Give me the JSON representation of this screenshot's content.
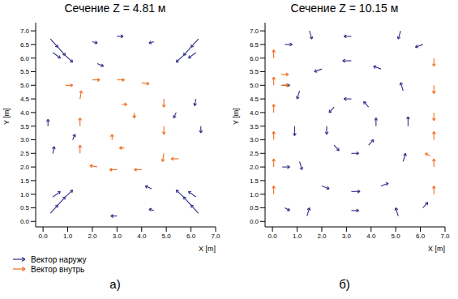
{
  "chart_data": [
    {
      "type": "vector",
      "title": "Сечение Z = 4.81 м",
      "panel_label": "а)",
      "x_label": "X [m]",
      "y_label": "Y [m]",
      "xlim": [
        -0.3,
        7.0
      ],
      "ylim": [
        -0.2,
        7.3
      ],
      "xticks": [
        {
          "value": 0,
          "label": "0.0"
        },
        {
          "value": 1,
          "label": "1.0"
        },
        {
          "value": 2,
          "label": "2.0"
        },
        {
          "value": 3,
          "label": "3.0"
        },
        {
          "value": 4,
          "label": "4.0"
        },
        {
          "value": 5,
          "label": "5.0"
        },
        {
          "value": 6,
          "label": "6.0"
        },
        {
          "value": 7,
          "label": "7.0"
        }
      ],
      "yticks": [
        {
          "value": 0,
          "label": "0.0"
        },
        {
          "value": 0.5,
          "label": "0.5"
        },
        {
          "value": 1,
          "label": "1.0"
        },
        {
          "value": 1.5,
          "label": "1.5"
        },
        {
          "value": 2,
          "label": "2.0"
        },
        {
          "value": 2.5,
          "label": "2.5"
        },
        {
          "value": 3,
          "label": "3.0"
        },
        {
          "value": 3.5,
          "label": "3.5"
        },
        {
          "value": 4,
          "label": "4.0"
        },
        {
          "value": 4.5,
          "label": "4.5"
        },
        {
          "value": 5,
          "label": "5.0"
        },
        {
          "value": 5.5,
          "label": "5.5"
        },
        {
          "value": 6,
          "label": "6.0"
        },
        {
          "value": 6.5,
          "label": "6.5"
        },
        {
          "value": 7,
          "label": "7.0"
        }
      ],
      "grid": false,
      "legend": "bottom",
      "series": [
        {
          "name": "Вектор наружу",
          "color": "#2e2e8a",
          "marker": "arrow",
          "values": [
            {
              "x": 0.3,
              "y": 6.7,
              "u": 0.3,
              "v": -0.3
            },
            {
              "x": 0.6,
              "y": 6.4,
              "u": 0.3,
              "v": -0.3
            },
            {
              "x": 0.9,
              "y": 6.1,
              "u": 0.3,
              "v": -0.25
            },
            {
              "x": 0.4,
              "y": 6.2,
              "u": 0.3,
              "v": -0.2
            },
            {
              "x": 6.3,
              "y": 6.7,
              "u": -0.3,
              "v": -0.3
            },
            {
              "x": 6.0,
              "y": 6.4,
              "u": -0.3,
              "v": -0.3
            },
            {
              "x": 5.7,
              "y": 6.1,
              "u": -0.3,
              "v": -0.25
            },
            {
              "x": 6.2,
              "y": 6.2,
              "u": -0.3,
              "v": -0.2
            },
            {
              "x": 0.3,
              "y": 0.3,
              "u": 0.3,
              "v": 0.3
            },
            {
              "x": 0.6,
              "y": 0.6,
              "u": 0.3,
              "v": 0.3
            },
            {
              "x": 0.9,
              "y": 0.9,
              "u": 0.3,
              "v": 0.25
            },
            {
              "x": 0.4,
              "y": 0.9,
              "u": 0.3,
              "v": 0.2
            },
            {
              "x": 6.3,
              "y": 0.3,
              "u": -0.3,
              "v": 0.3
            },
            {
              "x": 6.0,
              "y": 0.6,
              "u": -0.3,
              "v": 0.3
            },
            {
              "x": 5.7,
              "y": 0.9,
              "u": -0.3,
              "v": 0.25
            },
            {
              "x": 6.2,
              "y": 0.9,
              "u": -0.3,
              "v": 0.2
            },
            {
              "x": 3.0,
              "y": 6.8,
              "u": 0.25,
              "v": 0
            },
            {
              "x": 2.0,
              "y": 6.6,
              "u": 0.2,
              "v": -0.05
            },
            {
              "x": 4.5,
              "y": 6.6,
              "u": -0.2,
              "v": -0.05
            },
            {
              "x": 0.2,
              "y": 3.5,
              "u": 0,
              "v": 0.25
            },
            {
              "x": 0.4,
              "y": 2.5,
              "u": 0.05,
              "v": 0.25
            },
            {
              "x": 6.4,
              "y": 3.5,
              "u": 0,
              "v": -0.25
            },
            {
              "x": 6.2,
              "y": 4.5,
              "u": -0.05,
              "v": -0.25
            },
            {
              "x": 3.0,
              "y": 0.2,
              "u": -0.25,
              "v": 0
            },
            {
              "x": 4.5,
              "y": 0.4,
              "u": -0.2,
              "v": 0.05
            },
            {
              "x": 1.2,
              "y": 3.0,
              "u": 0.1,
              "v": 0.2
            },
            {
              "x": 5.4,
              "y": 4.0,
              "u": -0.1,
              "v": -0.2
            },
            {
              "x": 2.2,
              "y": 5.8,
              "u": 0.25,
              "v": -0.1
            },
            {
              "x": 4.4,
              "y": 1.2,
              "u": -0.25,
              "v": 0.1
            }
          ]
        },
        {
          "name": "Вектор внутрь",
          "color": "#f06a1e",
          "marker": "arrow",
          "values": [
            {
              "x": 1.5,
              "y": 2.5,
              "u": 0,
              "v": 0.3
            },
            {
              "x": 1.5,
              "y": 3.5,
              "u": 0,
              "v": 0.3
            },
            {
              "x": 1.5,
              "y": 4.5,
              "u": 0.05,
              "v": 0.3
            },
            {
              "x": 2.0,
              "y": 5.2,
              "u": 0.3,
              "v": 0
            },
            {
              "x": 3.0,
              "y": 5.2,
              "u": 0.3,
              "v": 0
            },
            {
              "x": 4.0,
              "y": 5.1,
              "u": 0.3,
              "v": -0.05
            },
            {
              "x": 4.9,
              "y": 4.5,
              "u": 0,
              "v": -0.3
            },
            {
              "x": 4.9,
              "y": 3.5,
              "u": 0,
              "v": -0.3
            },
            {
              "x": 4.9,
              "y": 2.5,
              "u": -0.05,
              "v": -0.3
            },
            {
              "x": 4.0,
              "y": 1.9,
              "u": -0.3,
              "v": 0
            },
            {
              "x": 3.0,
              "y": 1.9,
              "u": -0.3,
              "v": 0
            },
            {
              "x": 2.2,
              "y": 2.0,
              "u": -0.3,
              "v": 0.05
            },
            {
              "x": 0.9,
              "y": 5.0,
              "u": 0.3,
              "v": 0
            },
            {
              "x": 5.5,
              "y": 2.3,
              "u": -0.3,
              "v": 0
            },
            {
              "x": 2.8,
              "y": 3.0,
              "u": 0,
              "v": 0.2
            },
            {
              "x": 3.7,
              "y": 4.0,
              "u": 0,
              "v": -0.2
            },
            {
              "x": 3.2,
              "y": 4.3,
              "u": 0.2,
              "v": 0
            },
            {
              "x": 3.3,
              "y": 2.7,
              "u": -0.2,
              "v": 0
            }
          ]
        }
      ]
    },
    {
      "type": "vector",
      "title": "Сечение Z = 10.15 м",
      "panel_label": "б)",
      "x_label": "X [m]",
      "y_label": "Y [m]",
      "xlim": [
        -0.3,
        7.0
      ],
      "ylim": [
        -0.2,
        7.3
      ],
      "xticks": [
        {
          "value": 0,
          "label": "0.0"
        },
        {
          "value": 1,
          "label": "1.0"
        },
        {
          "value": 2,
          "label": "2.0"
        },
        {
          "value": 3,
          "label": "3.0"
        },
        {
          "value": 4,
          "label": "4.0"
        },
        {
          "value": 5,
          "label": "5.0"
        },
        {
          "value": 6,
          "label": "6.0"
        },
        {
          "value": 7,
          "label": "7.0"
        }
      ],
      "yticks": [
        {
          "value": 0,
          "label": "0.0"
        },
        {
          "value": 0.5,
          "label": "0.5"
        },
        {
          "value": 1,
          "label": "1.0"
        },
        {
          "value": 1.5,
          "label": "1.5"
        },
        {
          "value": 2,
          "label": "2.0"
        },
        {
          "value": 2.5,
          "label": "2.5"
        },
        {
          "value": 3,
          "label": "3.0"
        },
        {
          "value": 3.5,
          "label": "3.5"
        },
        {
          "value": 4,
          "label": "4.0"
        },
        {
          "value": 4.5,
          "label": "4.5"
        },
        {
          "value": 5,
          "label": "5.0"
        },
        {
          "value": 5.5,
          "label": "5.5"
        },
        {
          "value": 6,
          "label": "6.0"
        },
        {
          "value": 6.5,
          "label": "6.5"
        },
        {
          "value": 7,
          "label": "7.0"
        }
      ],
      "grid": false,
      "series": [
        {
          "name": "Вектор наружу",
          "color": "#2e2e8a",
          "marker": "arrow",
          "values": [
            {
              "x": 1.5,
              "y": 7.0,
              "u": 0.1,
              "v": -0.3
            },
            {
              "x": 5.2,
              "y": 7.0,
              "u": -0.1,
              "v": -0.3
            },
            {
              "x": 1.4,
              "y": 0.2,
              "u": 0.1,
              "v": 0.3
            },
            {
              "x": 5.1,
              "y": 0.2,
              "u": -0.1,
              "v": 0.3
            },
            {
              "x": 3.2,
              "y": 4.5,
              "u": -0.3,
              "v": 0
            },
            {
              "x": 2.2,
              "y": 3.5,
              "u": 0,
              "v": -0.3
            },
            {
              "x": 3.2,
              "y": 2.5,
              "u": 0.3,
              "v": 0
            },
            {
              "x": 4.2,
              "y": 3.5,
              "u": 0,
              "v": 0.3
            },
            {
              "x": 2.5,
              "y": 4.2,
              "u": -0.2,
              "v": -0.2
            },
            {
              "x": 3.9,
              "y": 4.2,
              "u": -0.2,
              "v": 0.2
            },
            {
              "x": 2.5,
              "y": 2.8,
              "u": 0.2,
              "v": -0.2
            },
            {
              "x": 3.9,
              "y": 2.8,
              "u": 0.2,
              "v": 0.2
            },
            {
              "x": 3.2,
              "y": 5.9,
              "u": -0.35,
              "v": 0
            },
            {
              "x": 2.0,
              "y": 5.6,
              "u": -0.3,
              "v": -0.1
            },
            {
              "x": 4.4,
              "y": 5.6,
              "u": -0.3,
              "v": 0.1
            },
            {
              "x": 0.9,
              "y": 3.5,
              "u": 0,
              "v": -0.35
            },
            {
              "x": 1.1,
              "y": 4.8,
              "u": -0.1,
              "v": -0.3
            },
            {
              "x": 1.1,
              "y": 2.2,
              "u": 0.1,
              "v": -0.3
            },
            {
              "x": 3.2,
              "y": 1.1,
              "u": 0.35,
              "v": 0
            },
            {
              "x": 2.0,
              "y": 1.3,
              "u": 0.3,
              "v": -0.1
            },
            {
              "x": 4.4,
              "y": 1.3,
              "u": 0.3,
              "v": 0.1
            },
            {
              "x": 5.5,
              "y": 3.5,
              "u": 0,
              "v": 0.35
            },
            {
              "x": 5.3,
              "y": 2.2,
              "u": 0.1,
              "v": 0.3
            },
            {
              "x": 5.3,
              "y": 4.8,
              "u": -0.1,
              "v": 0.3
            },
            {
              "x": 0.5,
              "y": 6.5,
              "u": 0.3,
              "v": 0
            },
            {
              "x": 6.1,
              "y": 6.5,
              "u": -0.3,
              "v": -0.1
            },
            {
              "x": 0.5,
              "y": 0.5,
              "u": 0.2,
              "v": -0.1
            },
            {
              "x": 6.1,
              "y": 0.5,
              "u": 0.2,
              "v": 0.2
            },
            {
              "x": 3.2,
              "y": 6.8,
              "u": -0.3,
              "v": 0
            },
            {
              "x": 3.2,
              "y": 0.4,
              "u": 0.3,
              "v": 0
            },
            {
              "x": 0.4,
              "y": 5.0,
              "u": 0.3,
              "v": 0
            },
            {
              "x": 0.4,
              "y": 2.0,
              "u": 0.3,
              "v": 0
            }
          ]
        },
        {
          "name": "Вектор внутрь",
          "color": "#f06a1e",
          "marker": "arrow",
          "values": [
            {
              "x": 0.05,
              "y": 1.0,
              "u": 0,
              "v": 0.3
            },
            {
              "x": 0.05,
              "y": 2.0,
              "u": 0,
              "v": 0.3
            },
            {
              "x": 0.05,
              "y": 3.0,
              "u": 0,
              "v": 0.3
            },
            {
              "x": 0.05,
              "y": 4.0,
              "u": 0,
              "v": 0.3
            },
            {
              "x": 0.05,
              "y": 5.0,
              "u": 0,
              "v": 0.3
            },
            {
              "x": 0.05,
              "y": 6.0,
              "u": 0,
              "v": 0.3
            },
            {
              "x": 0.35,
              "y": 5.4,
              "u": 0.3,
              "v": 0
            },
            {
              "x": 0.35,
              "y": 5.0,
              "u": 0.3,
              "v": 0
            },
            {
              "x": 6.55,
              "y": 1.0,
              "u": 0,
              "v": 0.3
            },
            {
              "x": 6.55,
              "y": 2.0,
              "u": 0,
              "v": 0.3
            },
            {
              "x": 6.55,
              "y": 3.0,
              "u": 0,
              "v": 0.3
            },
            {
              "x": 6.55,
              "y": 4.0,
              "u": 0,
              "v": -0.3
            },
            {
              "x": 6.55,
              "y": 5.0,
              "u": 0,
              "v": -0.3
            },
            {
              "x": 6.55,
              "y": 6.0,
              "u": 0,
              "v": -0.3
            },
            {
              "x": 6.4,
              "y": 2.4,
              "u": -0.2,
              "v": 0.1
            }
          ]
        }
      ]
    }
  ]
}
